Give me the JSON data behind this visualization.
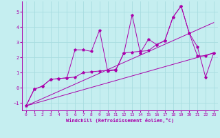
{
  "xlabel": "Windchill (Refroidissement éolien,°C)",
  "background_color": "#c5eef0",
  "grid_color": "#a8dde0",
  "line_color": "#aa00aa",
  "xlim": [
    -0.5,
    23.5
  ],
  "ylim": [
    -1.5,
    5.7
  ],
  "xticks": [
    0,
    1,
    2,
    3,
    4,
    5,
    6,
    7,
    8,
    9,
    10,
    11,
    12,
    13,
    14,
    15,
    16,
    17,
    18,
    19,
    20,
    21,
    22,
    23
  ],
  "yticks": [
    -1,
    0,
    1,
    2,
    3,
    4,
    5
  ],
  "series1_x": [
    0,
    1,
    2,
    3,
    4,
    5,
    6,
    7,
    8,
    9,
    10,
    11,
    12,
    13,
    14,
    15,
    16,
    17,
    18,
    19,
    20,
    21,
    22,
    23
  ],
  "series1_y": [
    -1.2,
    -0.1,
    0.1,
    0.55,
    0.6,
    0.65,
    2.5,
    2.5,
    2.4,
    3.8,
    1.1,
    1.15,
    2.3,
    4.8,
    2.3,
    3.2,
    2.85,
    3.1,
    4.65,
    5.4,
    3.6,
    2.7,
    0.7,
    2.3
  ],
  "series2_x": [
    0,
    1,
    2,
    3,
    4,
    5,
    6,
    7,
    8,
    9,
    10,
    11,
    12,
    13,
    14,
    15,
    16,
    17,
    18,
    19,
    20,
    21,
    22,
    23
  ],
  "series2_y": [
    -1.2,
    -0.1,
    0.1,
    0.55,
    0.6,
    0.65,
    0.7,
    1.0,
    1.05,
    1.1,
    1.15,
    1.2,
    2.3,
    2.35,
    2.4,
    2.45,
    2.85,
    3.1,
    4.65,
    5.4,
    3.6,
    2.1,
    2.1,
    2.3
  ],
  "trend1_x": [
    0,
    23
  ],
  "trend1_y": [
    -1.2,
    2.3
  ],
  "trend2_x": [
    0,
    23
  ],
  "trend2_y": [
    -1.2,
    4.3
  ]
}
